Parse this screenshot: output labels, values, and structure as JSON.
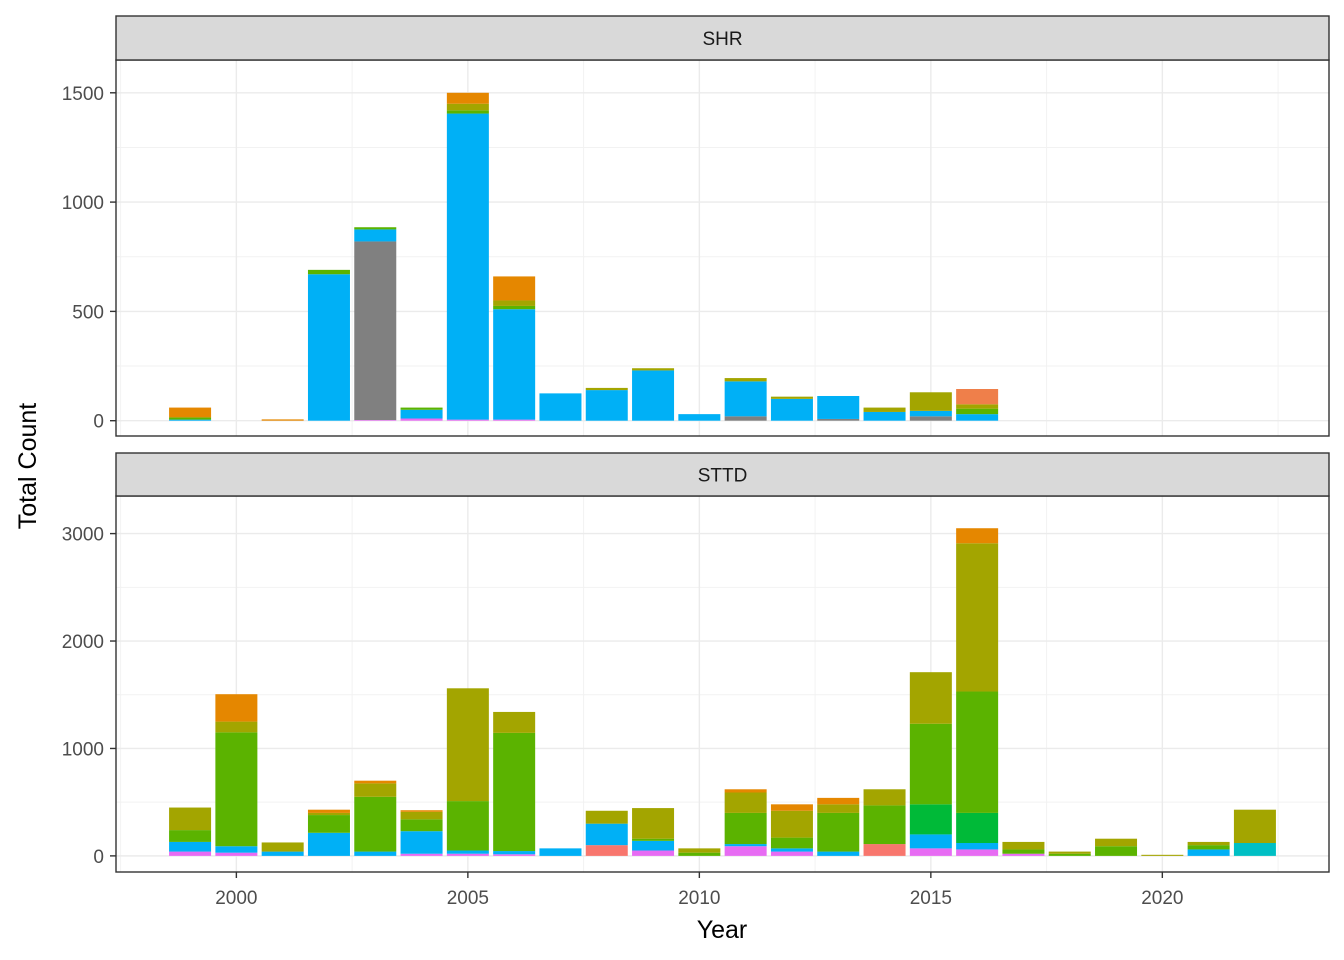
{
  "chart_data": {
    "type": "bar",
    "stacked": true,
    "facet_layout": "vertical",
    "xlabel": "Year",
    "ylabel": "Total Count",
    "x_ticks": [
      2000,
      2005,
      2010,
      2015,
      2020
    ],
    "xlim": [
      1997.4,
      2023.6
    ],
    "legend": "none",
    "grid": true,
    "colors": {
      "c_orange": "#E58700",
      "c_orange2": "#F8766D",
      "c_olive": "#A3A500",
      "c_green": "#5BB300",
      "c_green2": "#00BA38",
      "c_blue": "#00B0F6",
      "c_teal": "#00BFC4",
      "c_pink": "#F8766D",
      "c_magenta": "#E76BF3",
      "c_gray": "#808080",
      "c_coral": "#EF7F4A"
    },
    "facets": [
      {
        "label": "SHR",
        "ylim": [
          -70,
          1650
        ],
        "y_ticks": [
          0,
          500,
          1000,
          1500
        ],
        "bars": [
          {
            "year": 1999,
            "segments": [
              [
                "c_blue",
                5
              ],
              [
                "c_green",
                10
              ],
              [
                "c_orange",
                45
              ]
            ]
          },
          {
            "year": 2001,
            "segments": [
              [
                "c_orange",
                6
              ]
            ]
          },
          {
            "year": 2002,
            "segments": [
              [
                "c_blue",
                670
              ],
              [
                "c_green",
                20
              ]
            ]
          },
          {
            "year": 2003,
            "segments": [
              [
                "c_magenta",
                3
              ],
              [
                "c_gray",
                817
              ],
              [
                "c_blue",
                55
              ],
              [
                "c_green",
                10
              ]
            ]
          },
          {
            "year": 2004,
            "segments": [
              [
                "c_magenta",
                10
              ],
              [
                "c_blue",
                40
              ],
              [
                "c_green",
                10
              ]
            ]
          },
          {
            "year": 2005,
            "segments": [
              [
                "c_magenta",
                5
              ],
              [
                "c_blue",
                1400
              ],
              [
                "c_green",
                15
              ],
              [
                "c_olive",
                30
              ],
              [
                "c_orange",
                50
              ]
            ]
          },
          {
            "year": 2006,
            "segments": [
              [
                "c_magenta",
                5
              ],
              [
                "c_blue",
                505
              ],
              [
                "c_green",
                15
              ],
              [
                "c_olive",
                25
              ],
              [
                "c_orange",
                110
              ]
            ]
          },
          {
            "year": 2007,
            "segments": [
              [
                "c_blue",
                125
              ]
            ]
          },
          {
            "year": 2008,
            "segments": [
              [
                "c_blue",
                140
              ],
              [
                "c_olive",
                10
              ]
            ]
          },
          {
            "year": 2009,
            "segments": [
              [
                "c_blue",
                230
              ],
              [
                "c_olive",
                10
              ]
            ]
          },
          {
            "year": 2010,
            "segments": [
              [
                "c_blue",
                30
              ]
            ]
          },
          {
            "year": 2011,
            "segments": [
              [
                "c_gray",
                20
              ],
              [
                "c_blue",
                160
              ],
              [
                "c_olive",
                15
              ]
            ]
          },
          {
            "year": 2012,
            "segments": [
              [
                "c_blue",
                100
              ],
              [
                "c_olive",
                10
              ]
            ]
          },
          {
            "year": 2013,
            "segments": [
              [
                "c_gray",
                8
              ],
              [
                "c_blue",
                105
              ]
            ]
          },
          {
            "year": 2014,
            "segments": [
              [
                "c_blue",
                40
              ],
              [
                "c_olive",
                20
              ]
            ]
          },
          {
            "year": 2015,
            "segments": [
              [
                "c_gray",
                20
              ],
              [
                "c_blue",
                25
              ],
              [
                "c_olive",
                85
              ]
            ]
          },
          {
            "year": 2016,
            "segments": [
              [
                "c_blue",
                30
              ],
              [
                "c_green",
                25
              ],
              [
                "c_olive",
                20
              ],
              [
                "c_coral",
                70
              ]
            ]
          }
        ]
      },
      {
        "label": "STTD",
        "ylim": [
          -150,
          3350
        ],
        "y_ticks": [
          0,
          1000,
          2000,
          3000
        ],
        "bars": [
          {
            "year": 1999,
            "segments": [
              [
                "c_magenta",
                40
              ],
              [
                "c_blue",
                90
              ],
              [
                "c_green",
                110
              ],
              [
                "c_olive",
                210
              ]
            ]
          },
          {
            "year": 2000,
            "segments": [
              [
                "c_magenta",
                30
              ],
              [
                "c_blue",
                60
              ],
              [
                "c_green",
                1060
              ],
              [
                "c_olive",
                100
              ],
              [
                "c_orange",
                255
              ]
            ]
          },
          {
            "year": 2001,
            "segments": [
              [
                "c_blue",
                40
              ],
              [
                "c_olive",
                85
              ]
            ]
          },
          {
            "year": 2002,
            "segments": [
              [
                "c_blue",
                215
              ],
              [
                "c_green",
                165
              ],
              [
                "c_olive",
                20
              ],
              [
                "c_orange",
                30
              ]
            ]
          },
          {
            "year": 2003,
            "segments": [
              [
                "c_blue",
                40
              ],
              [
                "c_green",
                510
              ],
              [
                "c_olive",
                125
              ],
              [
                "c_orange",
                25
              ]
            ]
          },
          {
            "year": 2004,
            "segments": [
              [
                "c_magenta",
                20
              ],
              [
                "c_blue",
                210
              ],
              [
                "c_green",
                110
              ],
              [
                "c_olive",
                70
              ],
              [
                "c_orange",
                15
              ]
            ]
          },
          {
            "year": 2005,
            "segments": [
              [
                "c_magenta",
                20
              ],
              [
                "c_blue",
                30
              ],
              [
                "c_green",
                460
              ],
              [
                "c_olive",
                1050
              ]
            ]
          },
          {
            "year": 2006,
            "segments": [
              [
                "c_magenta",
                15
              ],
              [
                "c_blue",
                30
              ],
              [
                "c_green",
                1100
              ],
              [
                "c_olive",
                195
              ]
            ]
          },
          {
            "year": 2007,
            "segments": [
              [
                "c_blue",
                70
              ]
            ]
          },
          {
            "year": 2008,
            "segments": [
              [
                "c_pink",
                100
              ],
              [
                "c_blue",
                200
              ],
              [
                "c_olive",
                120
              ]
            ]
          },
          {
            "year": 2009,
            "segments": [
              [
                "c_magenta",
                50
              ],
              [
                "c_blue",
                90
              ],
              [
                "c_green",
                20
              ],
              [
                "c_olive",
                285
              ]
            ]
          },
          {
            "year": 2010,
            "segments": [
              [
                "c_green",
                30
              ],
              [
                "c_olive",
                40
              ]
            ]
          },
          {
            "year": 2011,
            "segments": [
              [
                "c_magenta",
                90
              ],
              [
                "c_blue",
                20
              ],
              [
                "c_green",
                290
              ],
              [
                "c_olive",
                190
              ],
              [
                "c_orange",
                30
              ]
            ]
          },
          {
            "year": 2012,
            "segments": [
              [
                "c_magenta",
                40
              ],
              [
                "c_blue",
                30
              ],
              [
                "c_green",
                100
              ],
              [
                "c_olive",
                250
              ],
              [
                "c_orange",
                60
              ]
            ]
          },
          {
            "year": 2013,
            "segments": [
              [
                "c_blue",
                40
              ],
              [
                "c_green",
                360
              ],
              [
                "c_olive",
                80
              ],
              [
                "c_orange",
                60
              ]
            ]
          },
          {
            "year": 2014,
            "segments": [
              [
                "c_pink",
                110
              ],
              [
                "c_green",
                360
              ],
              [
                "c_olive",
                150
              ]
            ]
          },
          {
            "year": 2015,
            "segments": [
              [
                "c_magenta",
                70
              ],
              [
                "c_blue",
                130
              ],
              [
                "c_green2",
                280
              ],
              [
                "c_green",
                750
              ],
              [
                "c_olive",
                480
              ]
            ]
          },
          {
            "year": 2016,
            "segments": [
              [
                "c_magenta",
                60
              ],
              [
                "c_blue",
                60
              ],
              [
                "c_green2",
                280
              ],
              [
                "c_green",
                1130
              ],
              [
                "c_olive",
                1380
              ],
              [
                "c_orange",
                140
              ]
            ]
          },
          {
            "year": 2017,
            "segments": [
              [
                "c_magenta",
                20
              ],
              [
                "c_green",
                40
              ],
              [
                "c_olive",
                70
              ]
            ]
          },
          {
            "year": 2018,
            "segments": [
              [
                "c_green",
                20
              ],
              [
                "c_olive",
                20
              ]
            ]
          },
          {
            "year": 2019,
            "segments": [
              [
                "c_green",
                90
              ],
              [
                "c_olive",
                70
              ]
            ]
          },
          {
            "year": 2020,
            "segments": [
              [
                "c_olive",
                10
              ]
            ]
          },
          {
            "year": 2021,
            "segments": [
              [
                "c_blue",
                60
              ],
              [
                "c_green",
                40
              ],
              [
                "c_olive",
                30
              ]
            ]
          },
          {
            "year": 2022,
            "segments": [
              [
                "c_teal",
                120
              ],
              [
                "c_olive",
                310
              ]
            ]
          }
        ]
      }
    ]
  }
}
